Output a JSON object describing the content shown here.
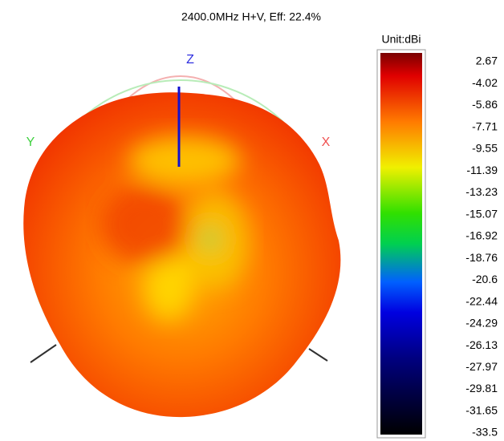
{
  "title": "2400.0MHz H+V, Eff: 22.4%",
  "axes": {
    "z": "Z",
    "y": "Y",
    "x": "X"
  },
  "colorbar": {
    "unit": "Unit:dBi",
    "labels": [
      2.67,
      -4.02,
      -5.86,
      -7.71,
      -9.55,
      -11.39,
      -13.23,
      -15.07,
      -16.92,
      -18.76,
      -20.6,
      -22.44,
      -24.29,
      -26.13,
      -27.97,
      -29.81,
      -31.65,
      -33.5
    ]
  }
}
